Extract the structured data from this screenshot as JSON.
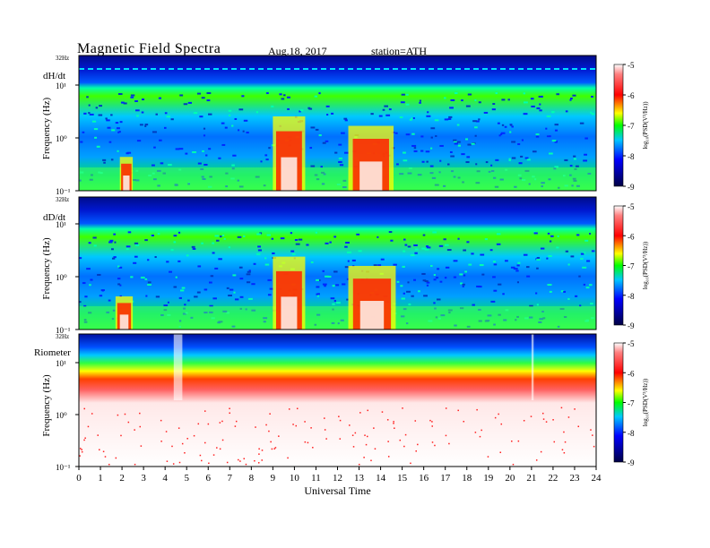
{
  "header": {
    "title": "Magnetic  Field  Spectra",
    "date": "Aug.18, 2017",
    "station": "station=ATH"
  },
  "colors": {
    "colormap": [
      "#000055",
      "#0000ff",
      "#00c8ff",
      "#00ff00",
      "#ffff00",
      "#ff0000",
      "#ffffff"
    ],
    "background": "#ffffff"
  },
  "chart_data": [
    {
      "type": "heatmap",
      "panel_label": "dH/dt",
      "ylabel": "Frequency  (Hz)",
      "y_top_label": "32Hz",
      "y_ticks": [
        "10¹",
        "10⁰",
        "10⁻¹"
      ],
      "colorbar": {
        "ticks": [
          "-5",
          "-6",
          "-7",
          "-8",
          "-9"
        ],
        "label": "log₁₀(PSD(V²/Hz))",
        "range": [
          -9,
          -5
        ]
      },
      "activity_intervals_ut": [
        [
          1.9,
          2.5
        ],
        [
          9.0,
          10.5
        ],
        [
          12.5,
          14.6
        ]
      ]
    },
    {
      "type": "heatmap",
      "panel_label": "dD/dt",
      "ylabel": "Frequency  (Hz)",
      "y_top_label": "32Hz",
      "y_ticks": [
        "10¹",
        "10⁰",
        "10⁻¹"
      ],
      "colorbar": {
        "ticks": [
          "-5",
          "-6",
          "-7",
          "-8",
          "-9"
        ],
        "label": "log₁₀(PSD(V²/Hz))",
        "range": [
          -9,
          -5
        ]
      },
      "activity_intervals_ut": [
        [
          1.7,
          2.5
        ],
        [
          9.0,
          10.5
        ],
        [
          12.5,
          14.7
        ]
      ]
    },
    {
      "type": "heatmap",
      "panel_label": "Riometer",
      "ylabel": "Frequency  (Hz)",
      "y_top_label": "32Hz",
      "y_ticks": [
        "10¹",
        "10⁰",
        "10⁻¹"
      ],
      "colorbar": {
        "ticks": [
          "-5",
          "-6",
          "-7",
          "-8",
          "-9"
        ],
        "label": "log₁₀(PSD(V²/Hz))",
        "range": [
          -9,
          -5
        ]
      },
      "activity_intervals_ut": [
        [
          4.4,
          4.8
        ],
        [
          21.0,
          21.1
        ]
      ]
    }
  ],
  "x_axis": {
    "label": "Universal Time",
    "range": [
      0,
      24
    ],
    "ticks": [
      "0",
      "1",
      "2",
      "3",
      "4",
      "5",
      "6",
      "7",
      "8",
      "9",
      "10",
      "11",
      "12",
      "13",
      "14",
      "15",
      "16",
      "17",
      "18",
      "19",
      "20",
      "21",
      "22",
      "23",
      "24"
    ]
  }
}
